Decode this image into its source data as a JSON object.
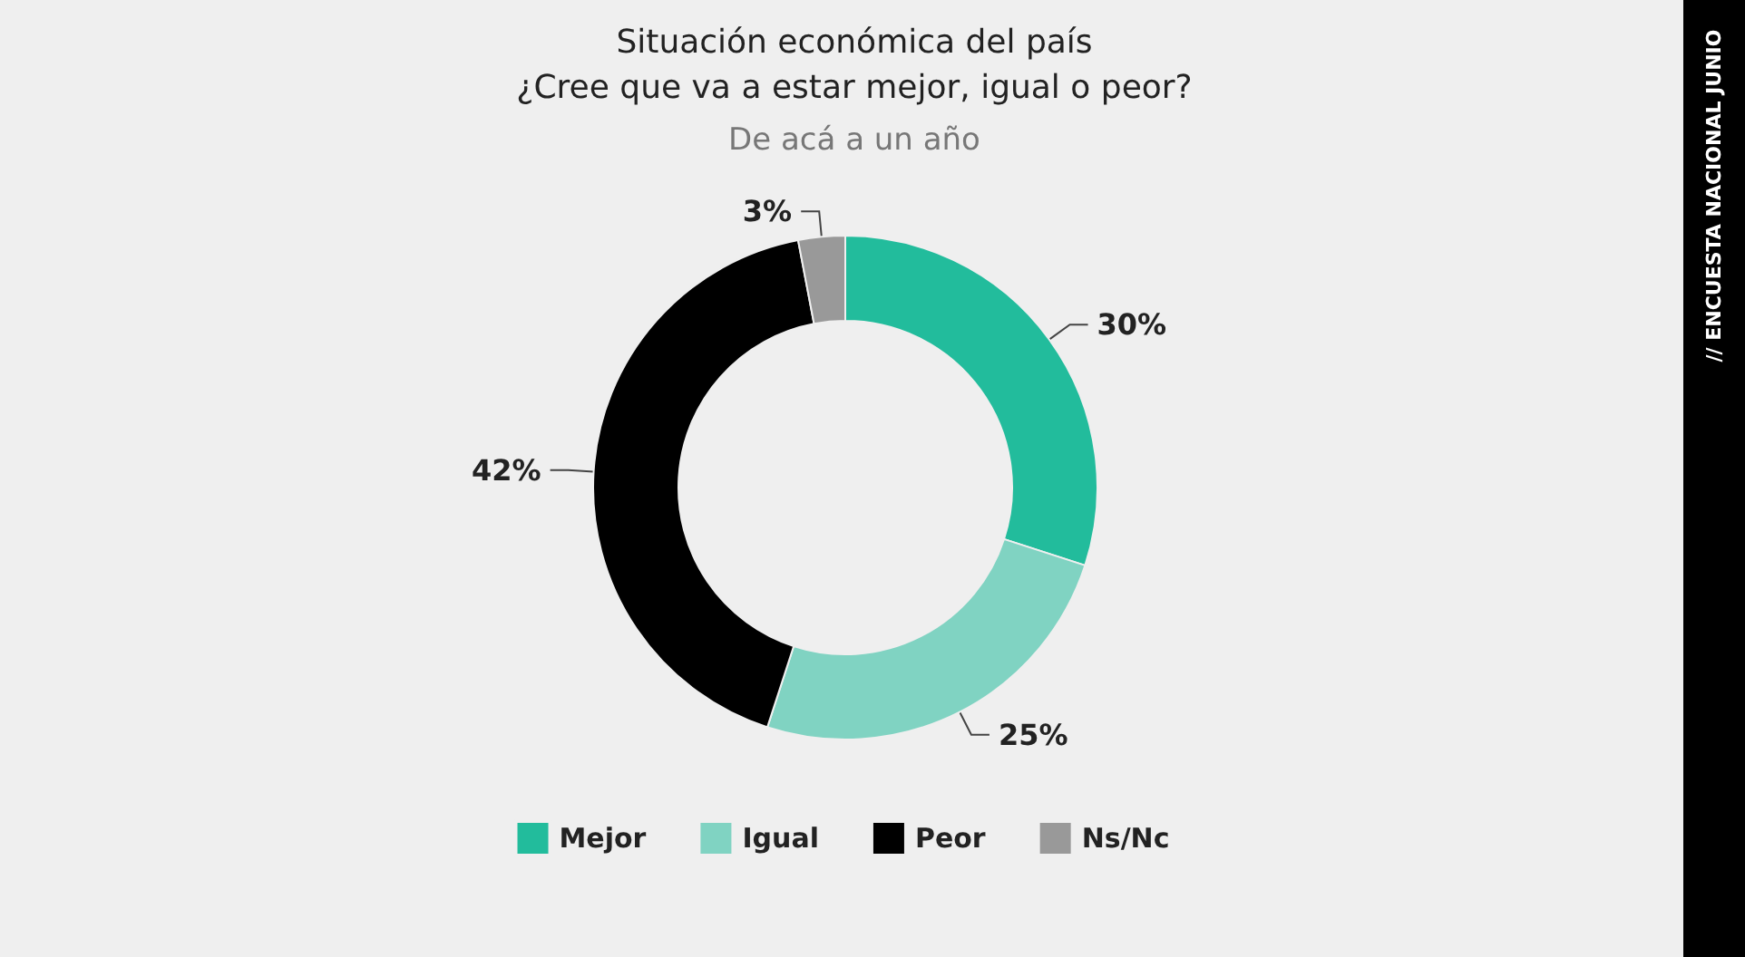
{
  "chart_data": {
    "type": "donut",
    "title": "Situación económica del país\n¿Cree que va a estar mejor, igual o peor?",
    "subtitle": "De acá a un año",
    "categories": [
      "Mejor",
      "Igual",
      "Peor",
      "Ns/Nc"
    ],
    "values": [
      30,
      25,
      42,
      3
    ],
    "colors": [
      "#22bc9c",
      "#80d3c2",
      "#000000",
      "#999999"
    ],
    "value_labels": [
      "30%",
      "25%",
      "42%",
      "3%"
    ],
    "legend": "bottom",
    "annotations": [
      "// ENCUESTA NACIONAL JUNIO"
    ]
  }
}
